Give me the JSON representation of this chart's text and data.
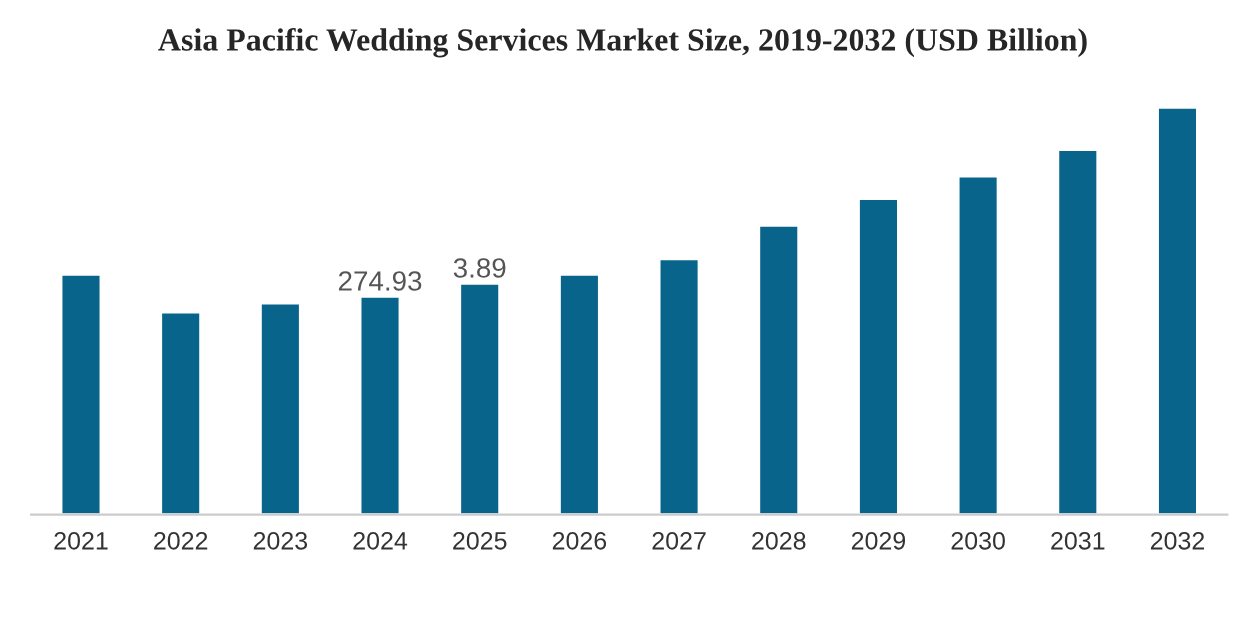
{
  "chart_data": {
    "type": "bar",
    "title": "Asia Pacific Wedding Services Market Size, 2019-2032 (USD Billion)",
    "categories": [
      "2021",
      "2022",
      "2023",
      "2024",
      "2025",
      "2026",
      "2027",
      "2028",
      "2029",
      "2030",
      "2031",
      "2032"
    ],
    "values": [
      302.6,
      254.9,
      266.2,
      274.93,
      291.3,
      302.6,
      322.1,
      364.2,
      398.0,
      426.2,
      459.6,
      512.9
    ],
    "value_labels": [
      null,
      null,
      null,
      "274.93",
      null,
      null,
      null,
      null,
      null,
      null,
      null,
      null
    ],
    "annotations": [
      {
        "text": "3.89",
        "x": "2025",
        "y": 291.3
      }
    ],
    "color": "#08648a",
    "grid": false,
    "legend": false
  }
}
